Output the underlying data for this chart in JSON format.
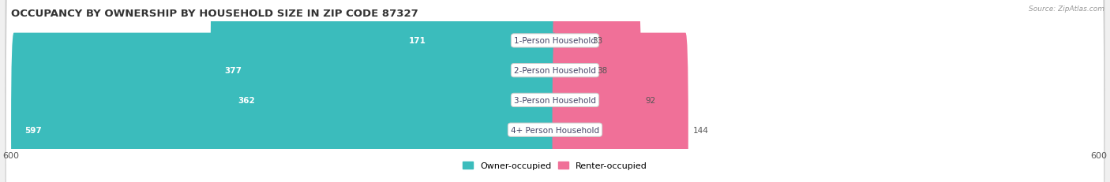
{
  "title": "OCCUPANCY BY OWNERSHIP BY HOUSEHOLD SIZE IN ZIP CODE 87327",
  "source": "Source: ZipAtlas.com",
  "categories": [
    "1-Person Household",
    "2-Person Household",
    "3-Person Household",
    "4+ Person Household"
  ],
  "owner_values": [
    171,
    377,
    362,
    597
  ],
  "renter_values": [
    33,
    38,
    92,
    144
  ],
  "owner_color": "#3BBCBC",
  "renter_color": "#F07098",
  "axis_max": 600,
  "axis_min": -600,
  "bg_color": "#f0f0f0",
  "legend_owner": "Owner-occupied",
  "legend_renter": "Renter-occupied",
  "title_fontsize": 9.5,
  "label_fontsize": 7.5,
  "value_fontsize": 7.5,
  "tick_fontsize": 8
}
